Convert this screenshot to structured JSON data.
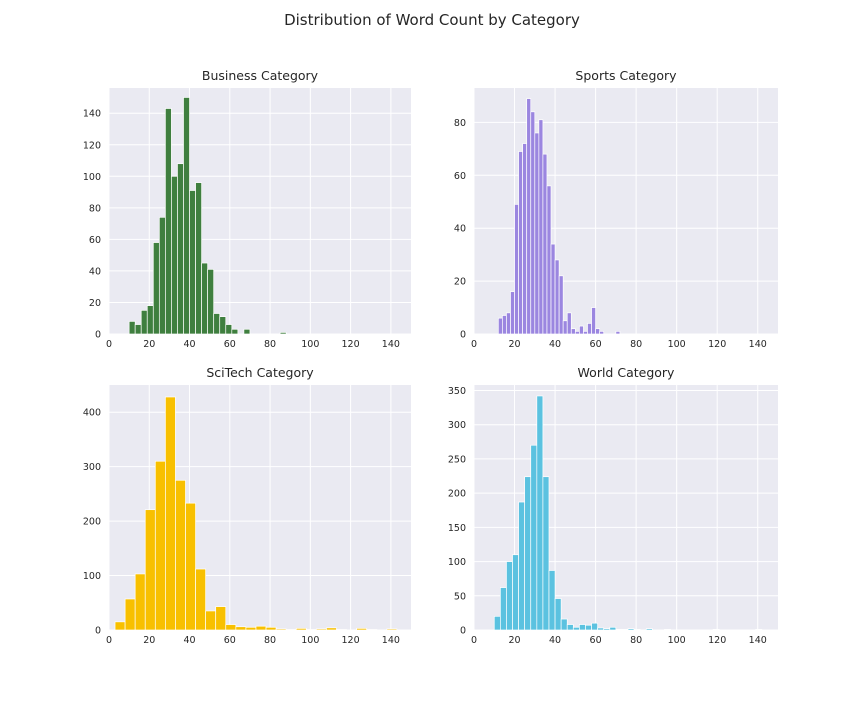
{
  "figure": {
    "title": "Distribution of Word Count by Category"
  },
  "chart_data": [
    {
      "type": "bar",
      "subtype": "histogram",
      "title": "Business Category",
      "xlabel": "",
      "ylabel": "",
      "color": "#3f7f3f",
      "xlim": [
        0,
        150
      ],
      "ylim": [
        0,
        156
      ],
      "xticks": [
        0,
        20,
        40,
        60,
        80,
        100,
        120,
        140
      ],
      "yticks": [
        0,
        20,
        40,
        60,
        80,
        100,
        120,
        140
      ],
      "grid": true,
      "bin_edges": [
        10,
        13,
        16,
        19,
        22,
        25,
        28,
        31,
        34,
        37,
        40,
        43,
        46,
        49,
        52,
        55,
        58,
        61,
        64,
        67,
        70,
        73,
        76,
        79,
        82,
        85,
        88,
        91,
        94,
        97,
        100,
        103,
        106,
        109,
        112,
        115,
        118,
        121,
        124,
        127,
        130,
        133,
        136,
        139,
        142,
        145
      ],
      "counts": [
        8,
        6,
        15,
        18,
        58,
        74,
        143,
        100,
        108,
        150,
        91,
        96,
        45,
        41,
        13,
        11,
        6,
        3,
        0,
        3,
        0,
        0,
        0,
        0,
        0,
        1,
        0,
        0,
        0,
        0,
        0,
        0,
        0,
        0,
        0,
        0,
        0,
        0,
        0,
        0,
        0,
        0,
        0,
        0,
        0
      ]
    },
    {
      "type": "bar",
      "subtype": "histogram",
      "title": "Sports Category",
      "xlabel": "",
      "ylabel": "",
      "color": "#9b86e0",
      "xlim": [
        0,
        150
      ],
      "ylim": [
        0,
        93
      ],
      "xticks": [
        0,
        20,
        40,
        60,
        80,
        100,
        120,
        140
      ],
      "yticks": [
        0,
        20,
        40,
        60,
        80
      ],
      "grid": true,
      "bin_edges": [
        12,
        14,
        16,
        18,
        20,
        22,
        24,
        26,
        28,
        30,
        32,
        34,
        36,
        38,
        40,
        42,
        44,
        46,
        48,
        50,
        52,
        54,
        56,
        58,
        60,
        62,
        64,
        66,
        68,
        70,
        72,
        74,
        76,
        78,
        80,
        82,
        84,
        86,
        88,
        90,
        92,
        94,
        96,
        98,
        100,
        102,
        104,
        106,
        108,
        110,
        112,
        114,
        116,
        118,
        120,
        122,
        124,
        126,
        128,
        130,
        132,
        134,
        136,
        138,
        140,
        142,
        144
      ],
      "counts": [
        6,
        7,
        8,
        16,
        49,
        69,
        72,
        89,
        84,
        76,
        81,
        68,
        56,
        34,
        28,
        22,
        5,
        8,
        2,
        1,
        3,
        1,
        4,
        10,
        2,
        1,
        0,
        0,
        0,
        1,
        0,
        0,
        0,
        0,
        0,
        0,
        0,
        0,
        0,
        0,
        0,
        0,
        0,
        0,
        0,
        0,
        0,
        0,
        0,
        0,
        0,
        0,
        0,
        0,
        0,
        0,
        0,
        0,
        0,
        0,
        0,
        0,
        0,
        0,
        0,
        0
      ]
    },
    {
      "type": "bar",
      "subtype": "histogram",
      "title": "SciTech Category",
      "xlabel": "",
      "ylabel": "",
      "color": "#f8c000",
      "xlim": [
        0,
        150
      ],
      "ylim": [
        0,
        450
      ],
      "xticks": [
        0,
        20,
        40,
        60,
        80,
        100,
        120,
        140
      ],
      "yticks": [
        0,
        100,
        200,
        300,
        400
      ],
      "grid": true,
      "bin_edges": [
        3,
        8,
        13,
        18,
        23,
        28,
        33,
        38,
        43,
        48,
        53,
        58,
        63,
        68,
        73,
        78,
        83,
        88,
        93,
        98,
        103,
        108,
        113,
        118,
        123,
        128,
        133,
        138,
        143
      ],
      "counts": [
        15,
        57,
        103,
        221,
        310,
        428,
        275,
        233,
        112,
        35,
        43,
        10,
        6,
        5,
        7,
        5,
        2,
        1,
        3,
        1,
        2,
        4,
        1,
        0,
        3,
        1,
        0,
        2
      ]
    },
    {
      "type": "bar",
      "subtype": "histogram",
      "title": "World Category",
      "xlabel": "",
      "ylabel": "",
      "color": "#5bc2e0",
      "xlim": [
        0,
        150
      ],
      "ylim": [
        0,
        358
      ],
      "xticks": [
        0,
        20,
        40,
        60,
        80,
        100,
        120,
        140
      ],
      "yticks": [
        0,
        50,
        100,
        150,
        200,
        250,
        300,
        350
      ],
      "grid": true,
      "bin_edges": [
        10,
        13,
        16,
        19,
        22,
        25,
        28,
        31,
        34,
        37,
        40,
        43,
        46,
        49,
        52,
        55,
        58,
        61,
        64,
        67,
        70,
        73,
        76,
        79,
        82,
        85,
        88,
        91,
        94,
        97,
        100,
        103,
        106,
        109,
        112,
        115,
        118,
        121,
        124,
        127,
        130,
        133,
        136,
        139,
        142,
        145
      ],
      "counts": [
        20,
        62,
        100,
        110,
        187,
        224,
        270,
        342,
        224,
        87,
        46,
        16,
        8,
        4,
        8,
        7,
        10,
        3,
        2,
        4,
        1,
        1,
        2,
        1,
        0,
        2,
        0,
        0,
        1,
        0,
        0,
        0,
        0,
        0,
        0,
        0,
        1,
        0,
        0,
        0,
        0,
        0,
        0,
        1,
        0
      ]
    }
  ]
}
